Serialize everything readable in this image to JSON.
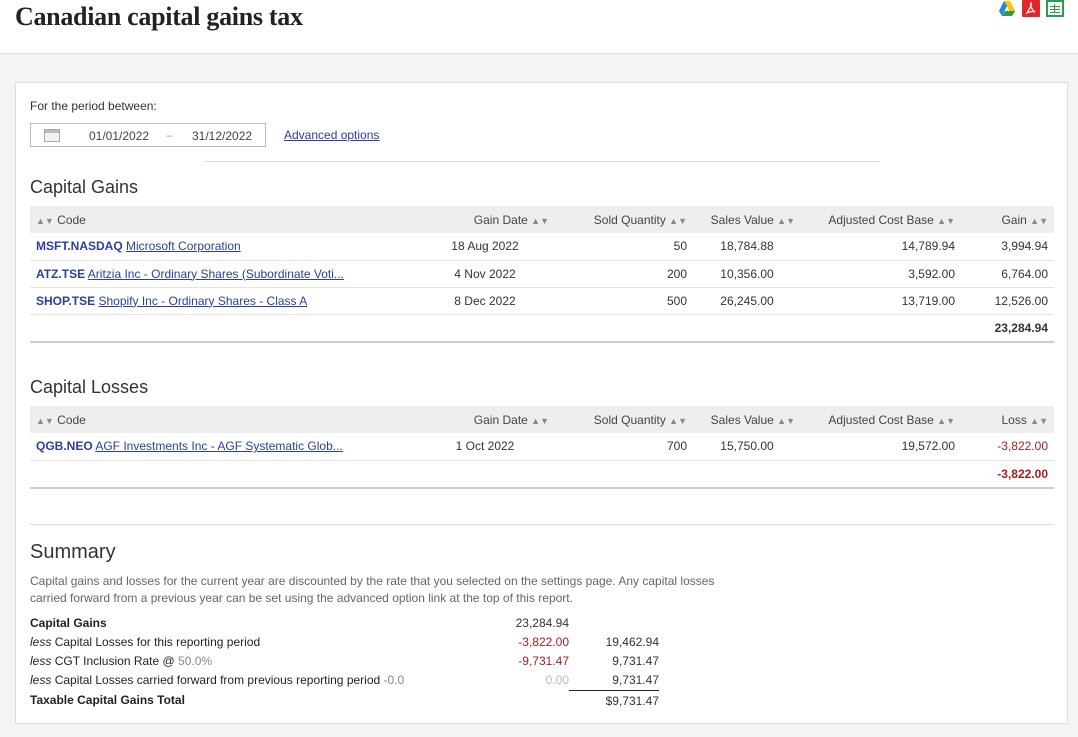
{
  "header": {
    "title": "Canadian capital gains tax",
    "export": {
      "pdf_glyph": "⛶"
    }
  },
  "period": {
    "label": "For the period between:",
    "from": "01/01/2022",
    "separator": "–",
    "to": "31/12/2022",
    "advanced_link": "Advanced options"
  },
  "gains": {
    "title": "Capital Gains",
    "columns": {
      "code": "Code",
      "gain_date": "Gain Date",
      "sold_quantity": "Sold Quantity",
      "sales_value": "Sales Value",
      "adjusted_cost_base": "Adjusted Cost Base",
      "gain": "Gain"
    },
    "rows": [
      {
        "code": "MSFT.NASDAQ",
        "name": "Microsoft Corporation",
        "date": "18 Aug 2022",
        "qty": "50",
        "sales": "18,784.88",
        "acb": "14,789.94",
        "gain": "3,994.94"
      },
      {
        "code": "ATZ.TSE",
        "name": "Aritzia Inc - Ordinary Shares (Subordinate Voti...",
        "date": "4 Nov 2022",
        "qty": "200",
        "sales": "10,356.00",
        "acb": "3,592.00",
        "gain": "6,764.00"
      },
      {
        "code": "SHOP.TSE",
        "name": "Shopify Inc - Ordinary Shares - Class A",
        "date": "8 Dec 2022",
        "qty": "500",
        "sales": "26,245.00",
        "acb": "13,719.00",
        "gain": "12,526.00"
      }
    ],
    "total": "23,284.94"
  },
  "losses": {
    "title": "Capital Losses",
    "columns": {
      "code": "Code",
      "gain_date": "Gain Date",
      "sold_quantity": "Sold Quantity",
      "sales_value": "Sales Value",
      "adjusted_cost_base": "Adjusted Cost Base",
      "loss": "Loss"
    },
    "rows": [
      {
        "code": "QGB.NEO",
        "name": "AGF Investments Inc - AGF Systematic Glob...",
        "date": "1 Oct 2022",
        "qty": "700",
        "sales": "15,750.00",
        "acb": "19,572.00",
        "loss": "-3,822.00"
      }
    ],
    "total": "-3,822.00"
  },
  "summary": {
    "title": "Summary",
    "description": "Capital gains and losses for the current year are discounted by the rate that you selected on the settings page. Any capital losses carried forward from a previous year can be set using the advanced option link at the top of this report.",
    "capital_gains_label": "Capital Gains",
    "capital_gains_value": "23,284.94",
    "less": "less",
    "losses_label": "Capital Losses for this reporting period",
    "losses_value": "-3,822.00",
    "losses_subtotal": "19,462.94",
    "inclusion_label": "CGT Inclusion Rate @",
    "inclusion_rate": "50.0%",
    "inclusion_value": "-9,731.47",
    "inclusion_subtotal": "9,731.47",
    "carried_label": "Capital Losses carried forward from previous reporting period",
    "carried_amount": "-0.0",
    "carried_value": "0.00",
    "carried_subtotal": "9,731.47",
    "taxable_label": "Taxable Capital Gains Total",
    "taxable_value": "$9,731.47"
  },
  "colors": {
    "link": "#2a3f9e",
    "negative": "#a71d1d",
    "header_bg": "#eeeeee"
  },
  "icons": [
    "google-drive-icon",
    "pdf-icon",
    "spreadsheet-icon",
    "calendar-icon",
    "sort-icon"
  ]
}
